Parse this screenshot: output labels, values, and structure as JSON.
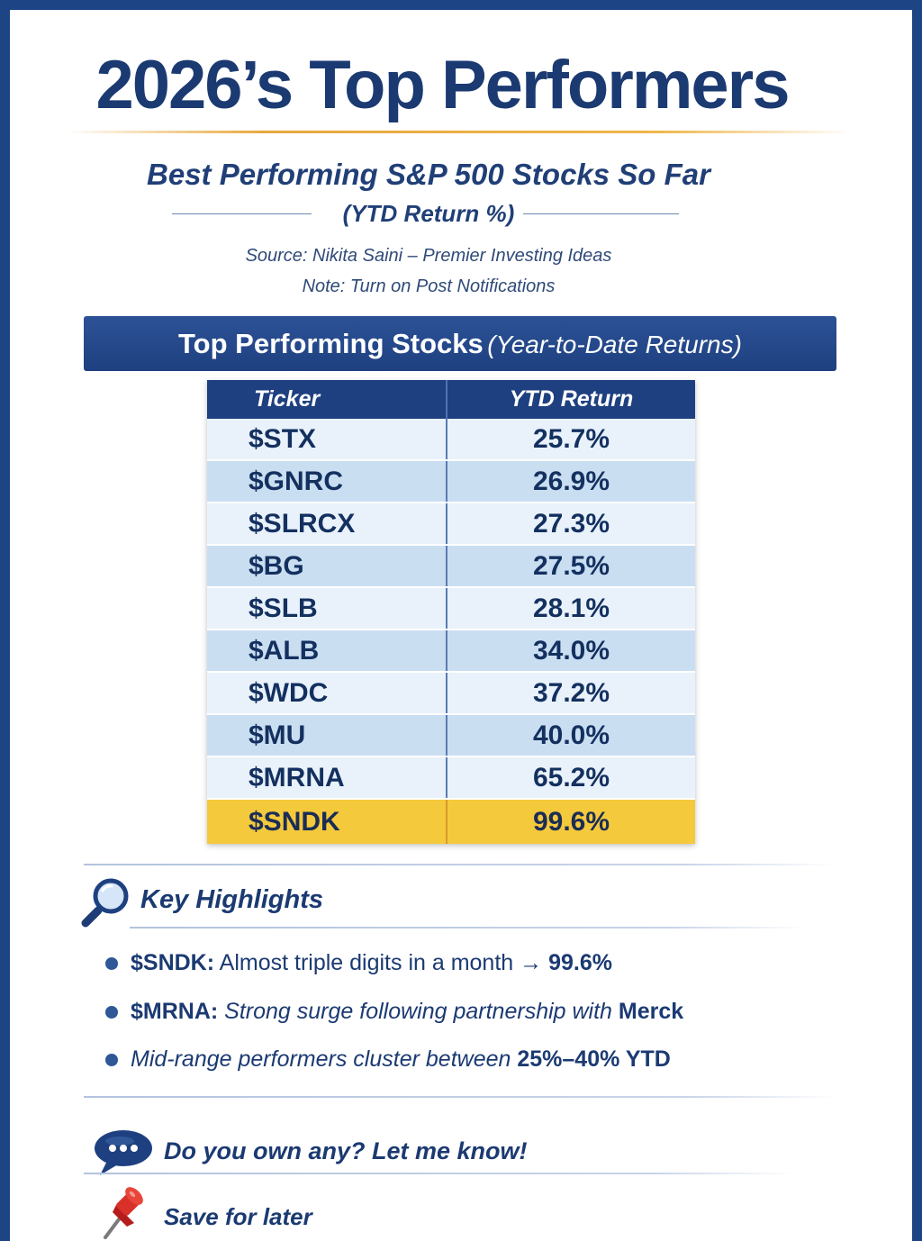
{
  "header": {
    "title": "2026’s Top Performers",
    "subtitle": "Best Performing S&P 500 Stocks So Far",
    "subtitle_metric": "(YTD Return %)",
    "source": "Source: Nikita Saini – Premier Investing Ideas",
    "note": "Note: Turn on Post Notifications"
  },
  "banner": {
    "title": "Top Performing Stocks",
    "subtitle": "(Year-to-Date Returns)"
  },
  "table": {
    "columns": [
      "Ticker",
      "YTD Return"
    ],
    "rows": [
      {
        "ticker": "$STX",
        "ytd_return": "25.7%"
      },
      {
        "ticker": "$GNRC",
        "ytd_return": "26.9%"
      },
      {
        "ticker": "$SLRCX",
        "ytd_return": "27.3%"
      },
      {
        "ticker": "$BG",
        "ytd_return": "27.5%"
      },
      {
        "ticker": "$SLB",
        "ytd_return": "28.1%"
      },
      {
        "ticker": "$ALB",
        "ytd_return": "34.0%"
      },
      {
        "ticker": "$WDC",
        "ytd_return": "37.2%"
      },
      {
        "ticker": "$MU",
        "ytd_return": "40.0%"
      },
      {
        "ticker": "$MRNA",
        "ytd_return": "65.2%"
      },
      {
        "ticker": "$SNDK",
        "ytd_return": "99.6%"
      }
    ],
    "highlight_color": "#f5c93c"
  },
  "highlights": {
    "icon": "magnifying-glass-icon",
    "title": "Key Highlights",
    "items": [
      {
        "label": "$SNDK:",
        "text": "Almost triple digits in a month",
        "arrow": "→",
        "value": "99.6%"
      },
      {
        "label": "$MRNA:",
        "text": "Strong surge following partnership with",
        "emphasis": "Merck"
      },
      {
        "text": "Mid-range performers cluster between",
        "emphasis": "25%–40% YTD"
      }
    ]
  },
  "cta": {
    "icon": "speech-bubble-icon",
    "text": "Do you own any? Let me know!"
  },
  "save": {
    "icon": "pushpin-icon",
    "text": "Save for later"
  },
  "colors": {
    "brand_navy": "#1e4080",
    "title_text": "#1b3a72",
    "gold_accent": "#e8a83c",
    "row_light": "#e9f2fb",
    "row_mid": "#cadef2"
  }
}
